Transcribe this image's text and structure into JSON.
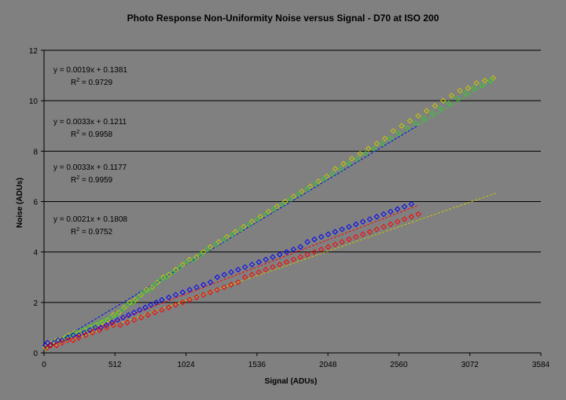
{
  "chart_data": {
    "type": "scatter",
    "title": "Photo Response Non-Uniformity Noise versus Signal - D70 at ISO 200",
    "xlabel": "Signal (ADUs)",
    "ylabel": "Noise (ADUs)",
    "xlim": [
      0,
      3584
    ],
    "ylim": [
      0,
      12
    ],
    "xticks": [
      0,
      512,
      1024,
      1536,
      2048,
      2560,
      3072,
      3584
    ],
    "yticks": [
      0,
      2,
      4,
      6,
      8,
      10,
      12
    ],
    "grid": "horizontal",
    "legend": "none",
    "marker": "open-diamond",
    "series": [
      {
        "color": "#C8C800",
        "trendline": {
          "slope": 0.0019,
          "intercept": 0.1381,
          "r2": 0.9729,
          "x_range": [
            0,
            3260
          ]
        },
        "points": [
          [
            10,
            0.2
          ],
          [
            30,
            0.3
          ],
          [
            60,
            0.4
          ],
          [
            90,
            0.5
          ],
          [
            120,
            0.5
          ],
          [
            150,
            0.6
          ],
          [
            180,
            0.7
          ],
          [
            220,
            0.8
          ],
          [
            260,
            0.8
          ],
          [
            300,
            0.9
          ],
          [
            340,
            1.0
          ],
          [
            380,
            1.1
          ],
          [
            420,
            1.2
          ],
          [
            460,
            1.3
          ],
          [
            500,
            1.5
          ],
          [
            540,
            1.6
          ],
          [
            580,
            1.8
          ],
          [
            620,
            2.0
          ],
          [
            660,
            2.1
          ],
          [
            700,
            2.3
          ],
          [
            740,
            2.5
          ],
          [
            780,
            2.6
          ],
          [
            820,
            2.8
          ],
          [
            860,
            3.0
          ],
          [
            900,
            3.1
          ],
          [
            950,
            3.3
          ],
          [
            1000,
            3.5
          ],
          [
            1050,
            3.7
          ],
          [
            1100,
            3.8
          ],
          [
            1150,
            4.0
          ],
          [
            1200,
            4.2
          ],
          [
            1260,
            4.4
          ],
          [
            1320,
            4.6
          ],
          [
            1380,
            4.8
          ],
          [
            1440,
            5.0
          ],
          [
            1500,
            5.2
          ],
          [
            1560,
            5.4
          ],
          [
            1620,
            5.6
          ],
          [
            1680,
            5.8
          ],
          [
            1740,
            6.0
          ],
          [
            1800,
            6.2
          ],
          [
            1860,
            6.4
          ],
          [
            1920,
            6.6
          ],
          [
            1980,
            6.8
          ],
          [
            2040,
            7.0
          ],
          [
            2100,
            7.3
          ],
          [
            2160,
            7.5
          ],
          [
            2220,
            7.7
          ],
          [
            2280,
            7.9
          ],
          [
            2340,
            8.1
          ],
          [
            2400,
            8.3
          ],
          [
            2460,
            8.5
          ],
          [
            2520,
            8.8
          ],
          [
            2580,
            9.0
          ],
          [
            2640,
            9.2
          ],
          [
            2700,
            9.4
          ],
          [
            2760,
            9.6
          ],
          [
            2820,
            9.8
          ],
          [
            2880,
            10.0
          ],
          [
            2940,
            10.2
          ],
          [
            3000,
            10.4
          ],
          [
            3060,
            10.5
          ],
          [
            3120,
            10.7
          ],
          [
            3180,
            10.8
          ],
          [
            3240,
            10.9
          ]
        ]
      },
      {
        "color": "#33CC33",
        "trendline": {
          "slope": 0.0033,
          "intercept": 0.1211,
          "r2": 0.9958,
          "x_range": [
            0,
            3250
          ]
        },
        "points": [
          [
            15,
            0.2
          ],
          [
            40,
            0.3
          ],
          [
            70,
            0.4
          ],
          [
            100,
            0.5
          ],
          [
            130,
            0.5
          ],
          [
            160,
            0.6
          ],
          [
            200,
            0.7
          ],
          [
            240,
            0.8
          ],
          [
            280,
            0.9
          ],
          [
            320,
            1.0
          ],
          [
            360,
            1.1
          ],
          [
            400,
            1.2
          ],
          [
            440,
            1.3
          ],
          [
            480,
            1.4
          ],
          [
            520,
            1.5
          ],
          [
            560,
            1.7
          ],
          [
            600,
            1.9
          ],
          [
            640,
            2.0
          ],
          [
            680,
            2.2
          ],
          [
            720,
            2.4
          ],
          [
            760,
            2.5
          ],
          [
            800,
            2.7
          ],
          [
            840,
            2.9
          ],
          [
            880,
            3.0
          ],
          [
            930,
            3.2
          ],
          [
            980,
            3.4
          ],
          [
            1030,
            3.6
          ],
          [
            1080,
            3.7
          ],
          [
            1130,
            3.9
          ],
          [
            1180,
            4.1
          ],
          [
            1240,
            4.3
          ],
          [
            1300,
            4.5
          ],
          [
            1360,
            4.7
          ],
          [
            1420,
            4.9
          ],
          [
            1480,
            5.1
          ],
          [
            1540,
            5.3
          ],
          [
            1600,
            5.5
          ],
          [
            1660,
            5.7
          ],
          [
            1720,
            5.9
          ],
          [
            1780,
            6.1
          ],
          [
            1840,
            6.3
          ],
          [
            1900,
            6.5
          ],
          [
            1960,
            6.7
          ],
          [
            2020,
            6.9
          ],
          [
            2080,
            7.1
          ],
          [
            2140,
            7.3
          ],
          [
            2200,
            7.5
          ],
          [
            2260,
            7.7
          ],
          [
            2320,
            7.9
          ],
          [
            2380,
            8.1
          ],
          [
            2440,
            8.3
          ],
          [
            2500,
            8.5
          ],
          [
            2560,
            8.7
          ],
          [
            2620,
            8.9
          ],
          [
            2680,
            9.1
          ],
          [
            2740,
            9.3
          ],
          [
            2800,
            9.5
          ],
          [
            2860,
            9.7
          ],
          [
            2920,
            9.9
          ],
          [
            2980,
            10.1
          ],
          [
            3040,
            10.3
          ],
          [
            3100,
            10.5
          ],
          [
            3160,
            10.6
          ],
          [
            3220,
            10.8
          ]
        ]
      },
      {
        "color": "#0000FF",
        "trendline": {
          "slope": 0.0033,
          "intercept": 0.1177,
          "r2": 0.9959,
          "x_range": [
            0,
            2690
          ]
        },
        "points": [
          [
            10,
            0.3
          ],
          [
            25,
            0.4
          ],
          [
            45,
            0.3
          ],
          [
            70,
            0.4
          ],
          [
            100,
            0.5
          ],
          [
            130,
            0.5
          ],
          [
            170,
            0.6
          ],
          [
            210,
            0.7
          ],
          [
            250,
            0.7
          ],
          [
            290,
            0.8
          ],
          [
            330,
            0.9
          ],
          [
            370,
            1.0
          ],
          [
            410,
            1.0
          ],
          [
            450,
            1.1
          ],
          [
            490,
            1.2
          ],
          [
            530,
            1.3
          ],
          [
            570,
            1.4
          ],
          [
            610,
            1.5
          ],
          [
            650,
            1.6
          ],
          [
            690,
            1.7
          ],
          [
            730,
            1.8
          ],
          [
            770,
            1.9
          ],
          [
            810,
            2.0
          ],
          [
            850,
            2.1
          ],
          [
            900,
            2.2
          ],
          [
            950,
            2.3
          ],
          [
            1000,
            2.4
          ],
          [
            1050,
            2.5
          ],
          [
            1100,
            2.6
          ],
          [
            1150,
            2.7
          ],
          [
            1200,
            2.8
          ],
          [
            1250,
            3.0
          ],
          [
            1300,
            3.1
          ],
          [
            1350,
            3.2
          ],
          [
            1400,
            3.3
          ],
          [
            1450,
            3.4
          ],
          [
            1500,
            3.5
          ],
          [
            1550,
            3.6
          ],
          [
            1600,
            3.7
          ],
          [
            1650,
            3.8
          ],
          [
            1700,
            3.9
          ],
          [
            1750,
            4.0
          ],
          [
            1800,
            4.1
          ],
          [
            1850,
            4.2
          ],
          [
            1900,
            4.4
          ],
          [
            1950,
            4.5
          ],
          [
            2000,
            4.6
          ],
          [
            2050,
            4.7
          ],
          [
            2100,
            4.8
          ],
          [
            2150,
            4.9
          ],
          [
            2200,
            5.0
          ],
          [
            2250,
            5.1
          ],
          [
            2300,
            5.2
          ],
          [
            2350,
            5.3
          ],
          [
            2400,
            5.4
          ],
          [
            2450,
            5.5
          ],
          [
            2500,
            5.6
          ],
          [
            2550,
            5.7
          ],
          [
            2600,
            5.8
          ],
          [
            2650,
            5.9
          ]
        ]
      },
      {
        "color": "#FF0000",
        "trendline": {
          "slope": 0.0021,
          "intercept": 0.1808,
          "r2": 0.9752,
          "x_range": [
            0,
            2700
          ]
        },
        "points": [
          [
            20,
            0.2
          ],
          [
            50,
            0.3
          ],
          [
            90,
            0.3
          ],
          [
            130,
            0.4
          ],
          [
            170,
            0.5
          ],
          [
            210,
            0.5
          ],
          [
            250,
            0.6
          ],
          [
            300,
            0.7
          ],
          [
            350,
            0.8
          ],
          [
            400,
            0.9
          ],
          [
            450,
            1.0
          ],
          [
            500,
            1.1
          ],
          [
            550,
            1.1
          ],
          [
            600,
            1.2
          ],
          [
            650,
            1.3
          ],
          [
            700,
            1.4
          ],
          [
            750,
            1.5
          ],
          [
            800,
            1.6
          ],
          [
            850,
            1.7
          ],
          [
            900,
            1.8
          ],
          [
            950,
            1.9
          ],
          [
            1000,
            2.0
          ],
          [
            1050,
            2.1
          ],
          [
            1100,
            2.2
          ],
          [
            1150,
            2.3
          ],
          [
            1200,
            2.4
          ],
          [
            1250,
            2.5
          ],
          [
            1300,
            2.6
          ],
          [
            1350,
            2.7
          ],
          [
            1400,
            2.8
          ],
          [
            1450,
            3.0
          ],
          [
            1500,
            3.1
          ],
          [
            1550,
            3.2
          ],
          [
            1600,
            3.3
          ],
          [
            1650,
            3.4
          ],
          [
            1700,
            3.5
          ],
          [
            1750,
            3.6
          ],
          [
            1800,
            3.7
          ],
          [
            1850,
            3.8
          ],
          [
            1900,
            3.9
          ],
          [
            1950,
            4.0
          ],
          [
            2000,
            4.1
          ],
          [
            2050,
            4.2
          ],
          [
            2100,
            4.3
          ],
          [
            2150,
            4.4
          ],
          [
            2200,
            4.5
          ],
          [
            2250,
            4.6
          ],
          [
            2300,
            4.7
          ],
          [
            2350,
            4.8
          ],
          [
            2400,
            4.9
          ],
          [
            2450,
            5.0
          ],
          [
            2500,
            5.1
          ],
          [
            2550,
            5.2
          ],
          [
            2600,
            5.3
          ],
          [
            2650,
            5.4
          ],
          [
            2700,
            5.5
          ]
        ]
      }
    ],
    "annotations": [
      {
        "equation": "y = 0.0019x + 0.1381",
        "r2_label": "R",
        "r2_value": " = 0.9729"
      },
      {
        "equation": "y = 0.0033x + 0.1211",
        "r2_label": "R",
        "r2_value": " = 0.9958"
      },
      {
        "equation": "y = 0.0033x + 0.1177",
        "r2_label": "R",
        "r2_value": " = 0.9959"
      },
      {
        "equation": "y = 0.0021x + 0.1808",
        "r2_label": "R",
        "r2_value": " = 0.9752"
      }
    ]
  }
}
